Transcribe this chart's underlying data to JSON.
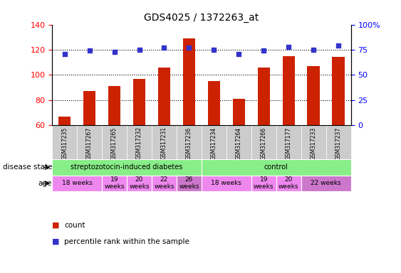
{
  "title": "GDS4025 / 1372263_at",
  "samples": [
    "GSM317235",
    "GSM317267",
    "GSM317265",
    "GSM317232",
    "GSM317231",
    "GSM317236",
    "GSM317234",
    "GSM317264",
    "GSM317266",
    "GSM317177",
    "GSM317233",
    "GSM317237"
  ],
  "bar_values": [
    67,
    87,
    91,
    97,
    106,
    129,
    95,
    81,
    106,
    115,
    107,
    114
  ],
  "dot_values": [
    71,
    74,
    73,
    75,
    77,
    77,
    75,
    71,
    74,
    78,
    75,
    79
  ],
  "ylim_left": [
    60,
    140
  ],
  "ylim_right": [
    0,
    100
  ],
  "yticks_left": [
    60,
    80,
    100,
    120,
    140
  ],
  "yticks_right": [
    0,
    25,
    50,
    75,
    100
  ],
  "ytick_labels_right": [
    "0",
    "25",
    "50",
    "75",
    "100%"
  ],
  "bar_color": "#cc2200",
  "dot_color": "#3333cc",
  "disease_groups": [
    {
      "label": "streptozotocin-induced diabetes",
      "start": 0,
      "end": 6,
      "color": "#88ee88"
    },
    {
      "label": "control",
      "start": 6,
      "end": 12,
      "color": "#88ee88"
    }
  ],
  "age_groups": [
    {
      "label": "18 weeks",
      "start": 0,
      "end": 2,
      "color": "#ee88ee"
    },
    {
      "label": "19\nweeks",
      "start": 2,
      "end": 3,
      "color": "#ee88ee"
    },
    {
      "label": "20\nweeks",
      "start": 3,
      "end": 4,
      "color": "#ee88ee"
    },
    {
      "label": "22\nweeks",
      "start": 4,
      "end": 5,
      "color": "#ee88ee"
    },
    {
      "label": "26\nweeks",
      "start": 5,
      "end": 6,
      "color": "#cc77cc"
    },
    {
      "label": "18 weeks",
      "start": 6,
      "end": 8,
      "color": "#ee88ee"
    },
    {
      "label": "19\nweeks",
      "start": 8,
      "end": 9,
      "color": "#ee88ee"
    },
    {
      "label": "20\nweeks",
      "start": 9,
      "end": 10,
      "color": "#ee88ee"
    },
    {
      "label": "22 weeks",
      "start": 10,
      "end": 12,
      "color": "#cc77cc"
    }
  ],
  "legend_count_label": "count",
  "legend_pct_label": "percentile rank within the sample",
  "disease_label": "disease state",
  "age_label": "age",
  "sample_bg": "#cccccc"
}
